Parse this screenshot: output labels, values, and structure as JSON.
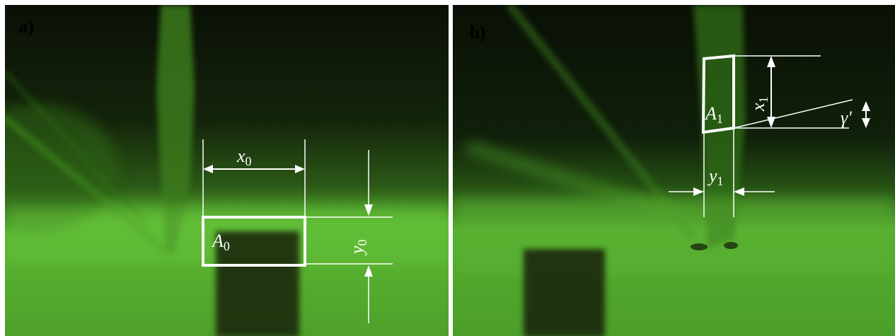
{
  "panels": [
    {
      "id": "a",
      "label": "a)",
      "annotations": {
        "width_dim": {
          "main": "x",
          "sub": "0"
        },
        "height_dim": {
          "main": "y",
          "sub": "0"
        },
        "area": {
          "main": "A",
          "sub": "0"
        }
      }
    },
    {
      "id": "b",
      "label": "b)",
      "annotations": {
        "height_dim": {
          "main": "x",
          "sub": "1"
        },
        "width_dim": {
          "main": "y",
          "sub": "1"
        },
        "area": {
          "main": "A",
          "sub": "1"
        },
        "angle": {
          "main": "γ'"
        }
      }
    }
  ],
  "colors": {
    "background_dark": "#0c1206",
    "glow_green": "#4fa82a",
    "bright_green": "#6fd23a",
    "annotation": "#ffffff"
  }
}
